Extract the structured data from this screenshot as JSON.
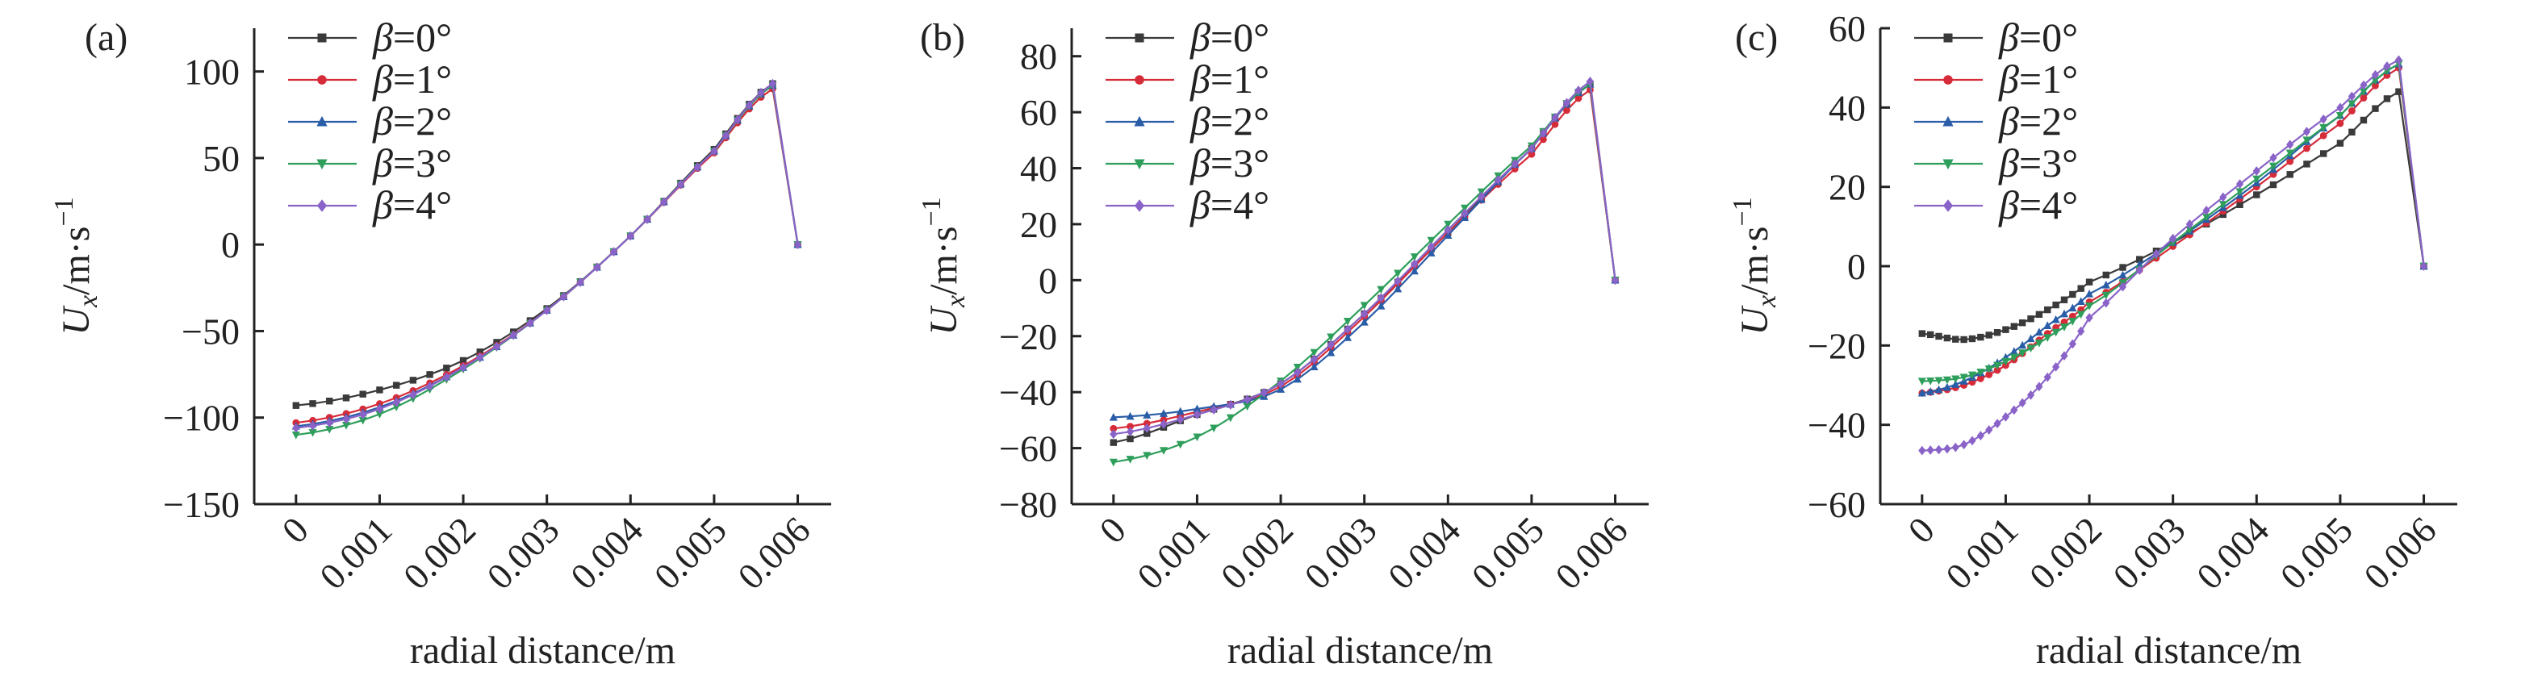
{
  "figure": {
    "panels": [
      "(a)",
      "(b)",
      "(c)"
    ]
  },
  "chart_data": [
    {
      "panel": "(a)",
      "type": "line",
      "xlabel": "radial distance/m",
      "ylabel": "Ux/m·s−1",
      "xlim": [
        -0.0005,
        0.0064
      ],
      "ylim": [
        -150,
        125
      ],
      "xticks": [
        0,
        0.001,
        0.002,
        0.003,
        0.004,
        0.005,
        0.006
      ],
      "xtick_labels": [
        "0",
        "0.001",
        "0.002",
        "0.003",
        "0.004",
        "0.005",
        "0.006"
      ],
      "yticks": [
        -150,
        -100,
        -50,
        0,
        50,
        100
      ],
      "ytick_labels": [
        "−150",
        "−100",
        "−50",
        "0",
        "50",
        "100"
      ],
      "legend_position": "top-left",
      "series": [
        {
          "name": "β=0°",
          "color": "#3a3a3a",
          "marker": "square",
          "x": [
            0,
            0.001,
            0.002,
            0.003,
            0.004,
            0.005,
            0.0057,
            0.006
          ],
          "y": [
            -93,
            -84,
            -67,
            -37,
            5,
            55,
            93,
            0
          ]
        },
        {
          "name": "β=1°",
          "color": "#d62c3a",
          "marker": "circle",
          "x": [
            0,
            0.001,
            0.002,
            0.003,
            0.004,
            0.005,
            0.0057,
            0.006
          ],
          "y": [
            -103,
            -92,
            -70,
            -38,
            5,
            53,
            90,
            0
          ]
        },
        {
          "name": "β=2°",
          "color": "#2a5da8",
          "marker": "triangle-up",
          "x": [
            0,
            0.001,
            0.002,
            0.003,
            0.004,
            0.005,
            0.0057,
            0.006
          ],
          "y": [
            -105,
            -94,
            -71,
            -38,
            5,
            54,
            92,
            0
          ]
        },
        {
          "name": "β=3°",
          "color": "#2e9e5b",
          "marker": "triangle-down",
          "x": [
            0,
            0.001,
            0.002,
            0.003,
            0.004,
            0.005,
            0.0057,
            0.006
          ],
          "y": [
            -110,
            -98,
            -72,
            -38,
            5,
            54,
            92,
            0
          ]
        },
        {
          "name": "β=4°",
          "color": "#8a63c8",
          "marker": "diamond",
          "x": [
            0,
            0.001,
            0.002,
            0.003,
            0.004,
            0.005,
            0.0057,
            0.006
          ],
          "y": [
            -106,
            -95,
            -71,
            -38,
            5,
            54,
            93,
            0
          ]
        }
      ]
    },
    {
      "panel": "(b)",
      "type": "line",
      "xlabel": "radial distance/m",
      "ylabel": "Ux/m·s−1",
      "xlim": [
        -0.0005,
        0.0064
      ],
      "ylim": [
        -80,
        90
      ],
      "xticks": [
        0,
        0.001,
        0.002,
        0.003,
        0.004,
        0.005,
        0.006
      ],
      "xtick_labels": [
        "0",
        "0.001",
        "0.002",
        "0.003",
        "0.004",
        "0.005",
        "0.006"
      ],
      "yticks": [
        -80,
        -60,
        -40,
        -20,
        0,
        20,
        40,
        60,
        80
      ],
      "ytick_labels": [
        "−80",
        "−60",
        "−40",
        "−20",
        "0",
        "20",
        "40",
        "60",
        "80"
      ],
      "legend_position": "top-left",
      "series": [
        {
          "name": "β=0°",
          "color": "#3a3a3a",
          "marker": "square",
          "x": [
            0,
            0.001,
            0.002,
            0.003,
            0.004,
            0.005,
            0.0057,
            0.006
          ],
          "y": [
            -58,
            -48,
            -37,
            -12,
            17,
            47,
            70,
            0
          ]
        },
        {
          "name": "β=1°",
          "color": "#d62c3a",
          "marker": "circle",
          "x": [
            0,
            0.001,
            0.002,
            0.003,
            0.004,
            0.005,
            0.0057,
            0.006
          ],
          "y": [
            -53,
            -47,
            -38,
            -13,
            17,
            45,
            68,
            0
          ]
        },
        {
          "name": "β=2°",
          "color": "#2a5da8",
          "marker": "triangle-up",
          "x": [
            0,
            0.001,
            0.002,
            0.003,
            0.004,
            0.005,
            0.0057,
            0.006
          ],
          "y": [
            -49,
            -46,
            -39,
            -15,
            16,
            47,
            70,
            0
          ]
        },
        {
          "name": "β=3°",
          "color": "#2e9e5b",
          "marker": "triangle-down",
          "x": [
            0,
            0.001,
            0.002,
            0.003,
            0.004,
            0.005,
            0.0057,
            0.006
          ],
          "y": [
            -65,
            -56,
            -36,
            -9,
            20,
            48,
            70,
            0
          ]
        },
        {
          "name": "β=4°",
          "color": "#8a63c8",
          "marker": "diamond",
          "x": [
            0,
            0.001,
            0.002,
            0.003,
            0.004,
            0.005,
            0.0057,
            0.006
          ],
          "y": [
            -55,
            -48,
            -37,
            -12,
            18,
            47,
            71,
            0
          ]
        }
      ]
    },
    {
      "panel": "(c)",
      "type": "line",
      "xlabel": "radial distance/m",
      "ylabel": "Ux/m·s−1",
      "xlim": [
        -0.0005,
        0.0064
      ],
      "ylim": [
        -60,
        60
      ],
      "xticks": [
        0,
        0.001,
        0.002,
        0.003,
        0.004,
        0.005,
        0.006
      ],
      "xtick_labels": [
        "0",
        "0.001",
        "0.002",
        "0.003",
        "0.004",
        "0.005",
        "0.006"
      ],
      "yticks": [
        -60,
        -40,
        -20,
        0,
        20,
        40,
        60
      ],
      "ytick_labels": [
        "−60",
        "−40",
        "−20",
        "0",
        "20",
        "40",
        "60"
      ],
      "legend_position": "top-left",
      "series": [
        {
          "name": "β=0°",
          "color": "#3a3a3a",
          "marker": "square",
          "x": [
            0,
            0.0005,
            0.001,
            0.0015,
            0.002,
            0.003,
            0.004,
            0.005,
            0.0057,
            0.006
          ],
          "y": [
            -17,
            -18.5,
            -16,
            -11,
            -4,
            6,
            18,
            31,
            44,
            0
          ]
        },
        {
          "name": "β=1°",
          "color": "#d62c3a",
          "marker": "circle",
          "x": [
            0,
            0.0005,
            0.001,
            0.0015,
            0.002,
            0.003,
            0.004,
            0.005,
            0.0057,
            0.006
          ],
          "y": [
            -32,
            -30,
            -25,
            -17,
            -9,
            5,
            20,
            36,
            50,
            0
          ]
        },
        {
          "name": "β=2°",
          "color": "#2a5da8",
          "marker": "triangle-up",
          "x": [
            0,
            0.0005,
            0.001,
            0.0015,
            0.002,
            0.003,
            0.004,
            0.005,
            0.0057,
            0.006
          ],
          "y": [
            -32,
            -29,
            -23,
            -15,
            -7,
            6,
            21,
            38,
            51,
            0
          ]
        },
        {
          "name": "β=3°",
          "color": "#2e9e5b",
          "marker": "triangle-down",
          "x": [
            0,
            0.0005,
            0.001,
            0.0015,
            0.002,
            0.003,
            0.004,
            0.005,
            0.0057,
            0.006
          ],
          "y": [
            -29,
            -28,
            -24,
            -18,
            -10,
            6,
            22,
            38,
            51,
            0
          ]
        },
        {
          "name": "β=4°",
          "color": "#8a63c8",
          "marker": "diamond",
          "x": [
            0,
            0.0005,
            0.001,
            0.0015,
            0.002,
            0.003,
            0.004,
            0.005,
            0.0057,
            0.006
          ],
          "y": [
            -46.5,
            -45,
            -38,
            -28,
            -13,
            7,
            24,
            40,
            52,
            0
          ]
        }
      ]
    }
  ]
}
